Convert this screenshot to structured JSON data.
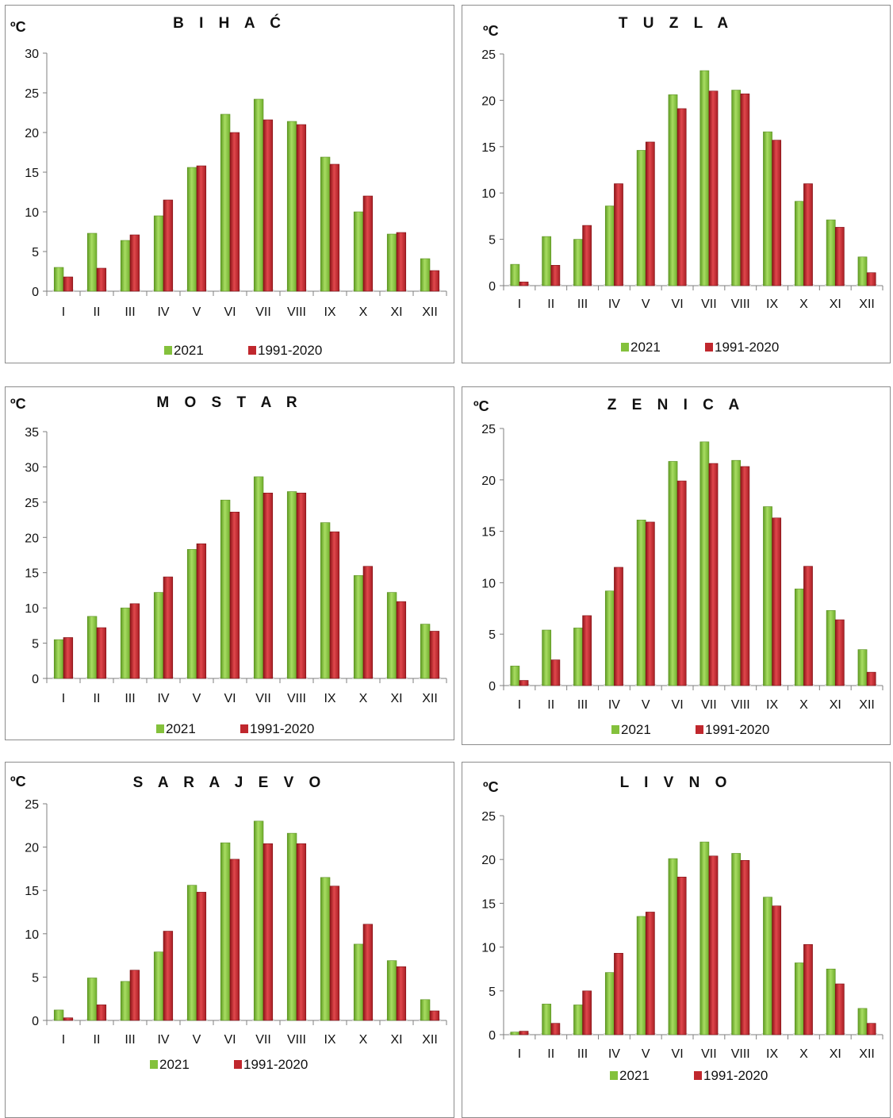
{
  "legend": {
    "series_1": "2021",
    "series_2": "1991-2020"
  },
  "colors": {
    "series_1": "#84c13c",
    "series_2": "#c0272d"
  },
  "chart_data": [
    {
      "type": "bar",
      "title": "B I H A Ć",
      "unit": "ºC",
      "categories": [
        "I",
        "II",
        "III",
        "IV",
        "V",
        "VI",
        "VII",
        "VIII",
        "IX",
        "X",
        "XI",
        "XII"
      ],
      "ylim": [
        0,
        30
      ],
      "yticks": [
        0,
        5,
        10,
        15,
        20,
        25,
        30
      ],
      "series": [
        {
          "name": "2021",
          "values": [
            3.0,
            7.3,
            6.4,
            9.5,
            15.6,
            22.3,
            24.2,
            21.4,
            16.9,
            10.0,
            7.2,
            4.1
          ]
        },
        {
          "name": "1991-2020",
          "values": [
            1.8,
            2.9,
            7.1,
            11.5,
            15.8,
            20.0,
            21.6,
            21.0,
            16.0,
            12.0,
            7.4,
            2.6
          ]
        }
      ],
      "legend_position": "bottom"
    },
    {
      "type": "bar",
      "title": "T U Z L A",
      "unit": "ºC",
      "categories": [
        "I",
        "II",
        "III",
        "IV",
        "V",
        "VI",
        "VII",
        "VIII",
        "IX",
        "X",
        "XI",
        "XII"
      ],
      "ylim": [
        0,
        25
      ],
      "yticks": [
        0,
        5,
        10,
        15,
        20,
        25
      ],
      "series": [
        {
          "name": "2021",
          "values": [
            2.3,
            5.3,
            5.0,
            8.6,
            14.6,
            20.6,
            23.2,
            21.1,
            16.6,
            9.1,
            7.1,
            3.1
          ]
        },
        {
          "name": "1991-2020",
          "values": [
            0.4,
            2.2,
            6.5,
            11.0,
            15.5,
            19.1,
            21.0,
            20.7,
            15.7,
            11.0,
            6.3,
            1.4
          ]
        }
      ],
      "legend_position": "bottom"
    },
    {
      "type": "bar",
      "title": "M O S T A R",
      "unit": "ºC",
      "categories": [
        "I",
        "II",
        "III",
        "IV",
        "V",
        "VI",
        "VII",
        "VIII",
        "IX",
        "X",
        "XI",
        "XII"
      ],
      "ylim": [
        0,
        35
      ],
      "yticks": [
        0,
        5,
        10,
        15,
        20,
        25,
        30,
        35
      ],
      "series": [
        {
          "name": "2021",
          "values": [
            5.5,
            8.8,
            10.0,
            12.2,
            18.3,
            25.3,
            28.6,
            26.5,
            22.1,
            14.6,
            12.2,
            7.7
          ]
        },
        {
          "name": "1991-2020",
          "values": [
            5.8,
            7.2,
            10.6,
            14.4,
            19.1,
            23.6,
            26.3,
            26.3,
            20.8,
            15.9,
            10.9,
            6.7
          ]
        }
      ],
      "legend_position": "bottom"
    },
    {
      "type": "bar",
      "title": "Z E N I C A",
      "unit": "ºC",
      "categories": [
        "I",
        "II",
        "III",
        "IV",
        "V",
        "VI",
        "VII",
        "VIII",
        "IX",
        "X",
        "XI",
        "XII"
      ],
      "ylim": [
        0,
        25
      ],
      "yticks": [
        0,
        5,
        10,
        15,
        20,
        25
      ],
      "series": [
        {
          "name": "2021",
          "values": [
            1.9,
            5.4,
            5.6,
            9.2,
            16.1,
            21.8,
            23.7,
            21.9,
            17.4,
            9.4,
            7.3,
            3.5
          ]
        },
        {
          "name": "1991-2020",
          "values": [
            0.5,
            2.5,
            6.8,
            11.5,
            15.9,
            19.9,
            21.6,
            21.3,
            16.3,
            11.6,
            6.4,
            1.3
          ]
        }
      ],
      "legend_position": "bottom"
    },
    {
      "type": "bar",
      "title": "S A R A J E V O",
      "unit": "ºC",
      "categories": [
        "I",
        "II",
        "III",
        "IV",
        "V",
        "VI",
        "VII",
        "VIII",
        "IX",
        "X",
        "XI",
        "XII"
      ],
      "ylim": [
        0,
        25
      ],
      "yticks": [
        0,
        5,
        10,
        15,
        20,
        25
      ],
      "series": [
        {
          "name": "2021",
          "values": [
            1.2,
            4.9,
            4.5,
            7.9,
            15.6,
            20.5,
            23.0,
            21.6,
            16.5,
            8.8,
            6.9,
            2.4
          ]
        },
        {
          "name": "1991-2020",
          "values": [
            0.3,
            1.8,
            5.8,
            10.3,
            14.8,
            18.6,
            20.4,
            20.4,
            15.5,
            11.1,
            6.2,
            1.1
          ]
        }
      ],
      "legend_position": "bottom"
    },
    {
      "type": "bar",
      "title": "L I V N O",
      "unit": "ºC",
      "categories": [
        "I",
        "II",
        "III",
        "IV",
        "V",
        "VI",
        "VII",
        "VIII",
        "IX",
        "X",
        "XI",
        "XII"
      ],
      "ylim": [
        0,
        25
      ],
      "yticks": [
        0,
        5,
        10,
        15,
        20,
        25
      ],
      "series": [
        {
          "name": "2021",
          "values": [
            0.3,
            3.5,
            3.4,
            7.1,
            13.5,
            20.1,
            22.0,
            20.7,
            15.7,
            8.2,
            7.5,
            3.0
          ]
        },
        {
          "name": "1991-2020",
          "values": [
            0.4,
            1.3,
            5.0,
            9.3,
            14.0,
            18.0,
            20.4,
            19.9,
            14.7,
            10.3,
            5.8,
            1.3
          ]
        }
      ],
      "legend_position": "bottom"
    }
  ]
}
